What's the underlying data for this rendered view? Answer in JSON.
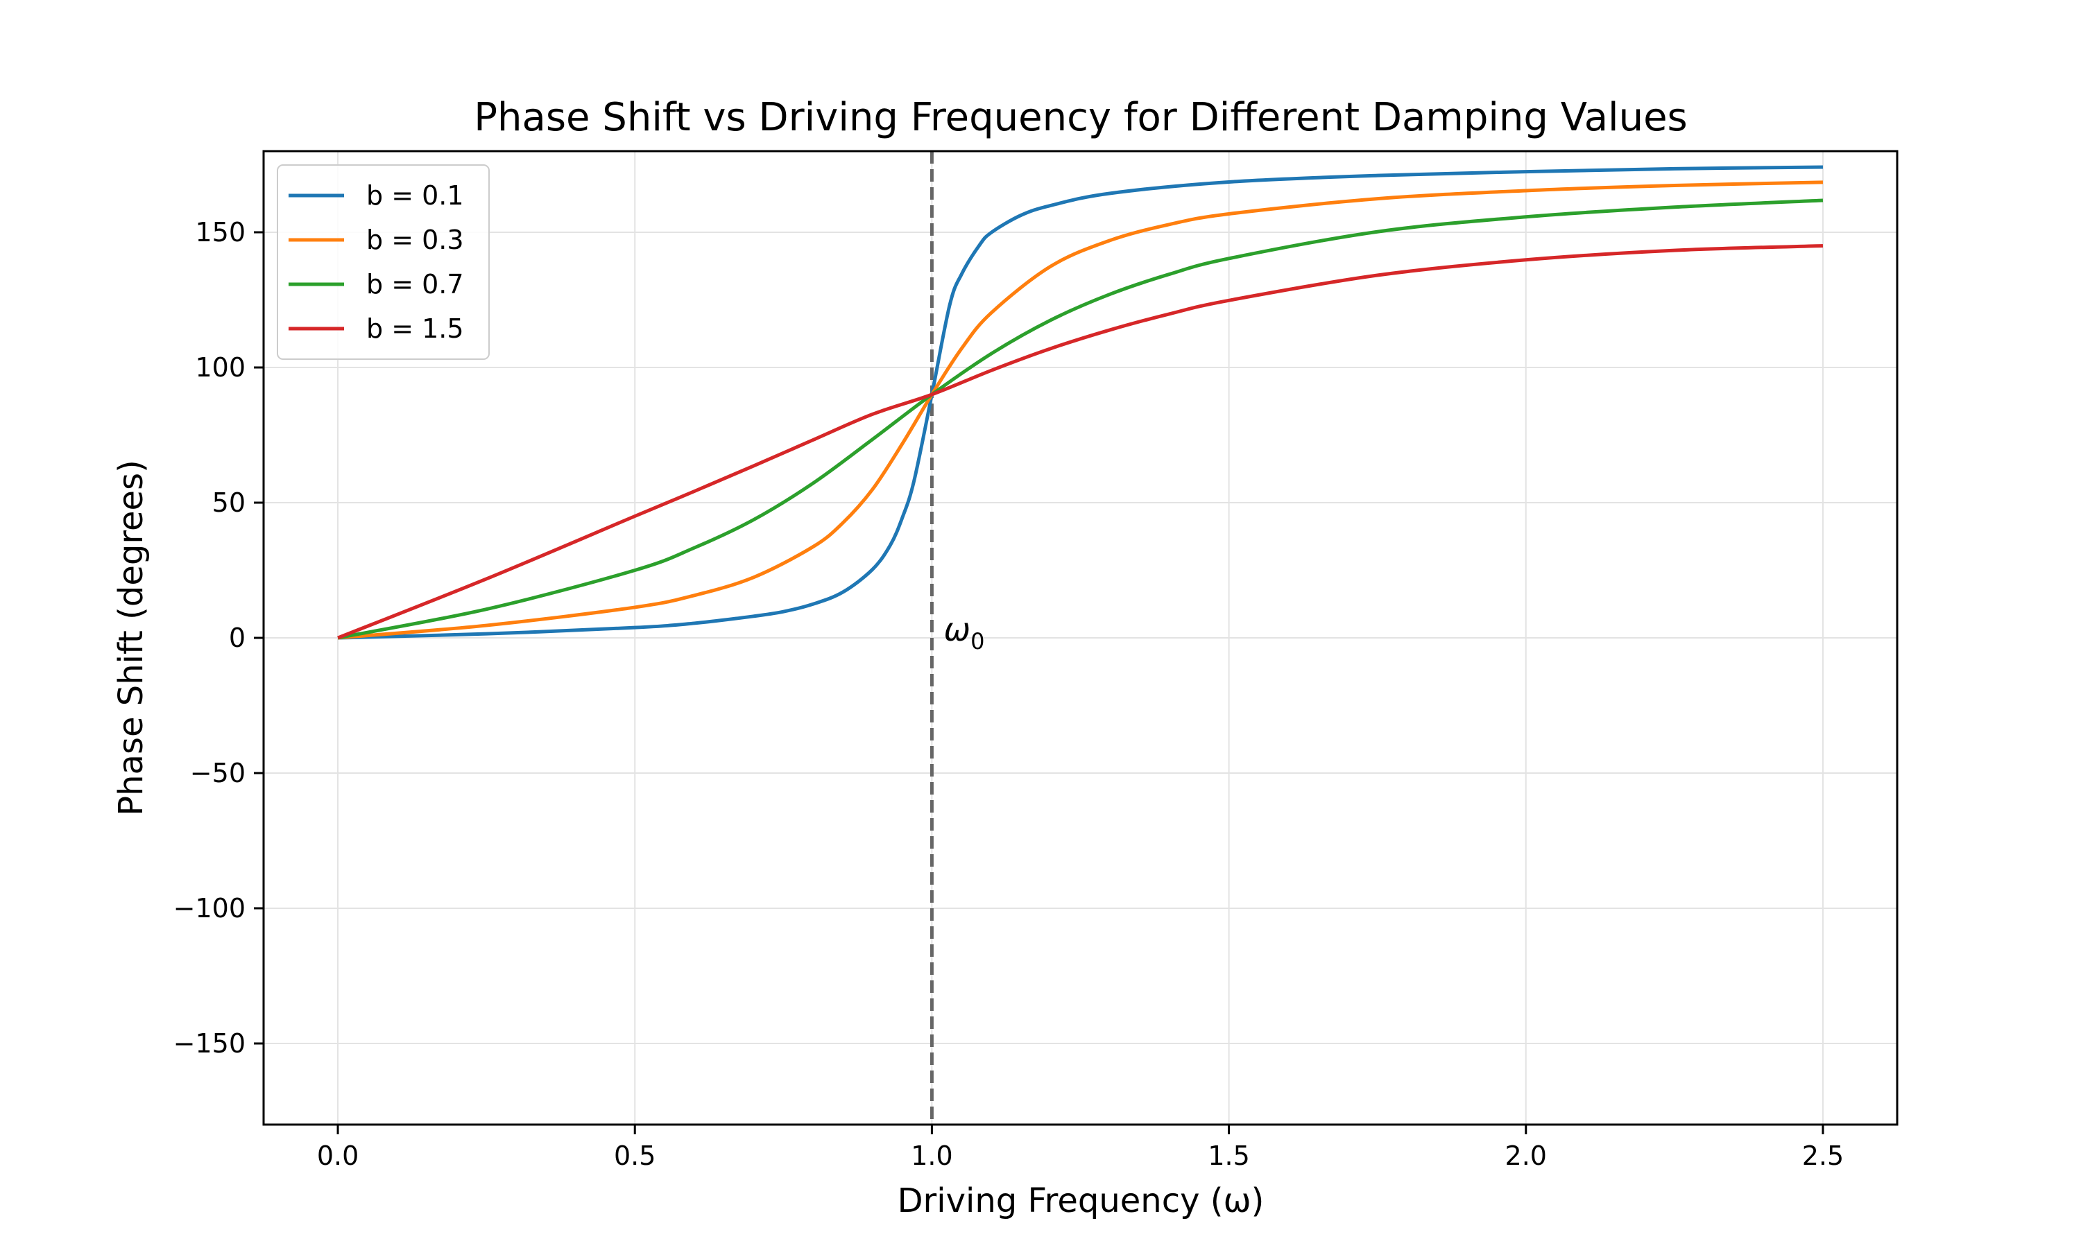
{
  "chart_data": {
    "type": "line",
    "title": "Phase Shift vs Driving Frequency for Different Damping Values",
    "xlabel": "Driving Frequency (ω)",
    "ylabel": "Phase Shift (degrees)",
    "xlim": [
      -0.125,
      2.625
    ],
    "ylim": [
      -180,
      180
    ],
    "xticks": [
      0.0,
      0.5,
      1.0,
      1.5,
      2.0,
      2.5
    ],
    "xtick_labels": [
      "0.0",
      "0.5",
      "1.0",
      "1.5",
      "2.0",
      "2.5"
    ],
    "yticks": [
      -150,
      -100,
      -50,
      0,
      50,
      100,
      150
    ],
    "ytick_labels": [
      "−150",
      "−100",
      "−50",
      "0",
      "50",
      "100",
      "150"
    ],
    "grid": true,
    "legend_position": "upper-left",
    "series": [
      {
        "name": "b = 0.1",
        "color": "#1f77b4",
        "x": [
          0.0,
          0.25,
          0.5,
          0.6,
          0.7,
          0.75,
          0.8,
          0.85,
          0.9,
          0.93,
          0.95,
          0.97,
          1.0,
          1.03,
          1.05,
          1.08,
          1.1,
          1.15,
          1.2,
          1.3,
          1.5,
          1.75,
          2.0,
          2.25,
          2.5
        ],
        "y": [
          0.0,
          1.5,
          3.8,
          5.4,
          8.0,
          9.7,
          12.5,
          16.9,
          25.3,
          34.3,
          44.3,
          58.1,
          90.0,
          123.1,
          134.5,
          145.2,
          149.9,
          156.3,
          159.9,
          164.4,
          168.6,
          171.0,
          172.4,
          173.5,
          174.1
        ]
      },
      {
        "name": "b = 0.3",
        "color": "#ff7f0e",
        "x": [
          0.0,
          0.25,
          0.5,
          0.6,
          0.7,
          0.8,
          0.85,
          0.9,
          0.95,
          1.0,
          1.05,
          1.1,
          1.2,
          1.3,
          1.4,
          1.5,
          1.75,
          2.0,
          2.25,
          2.5
        ],
        "y": [
          0.0,
          4.6,
          11.3,
          15.7,
          22.4,
          33.7,
          42.5,
          54.9,
          71.7,
          90.0,
          107.0,
          120.2,
          137.4,
          147.0,
          152.9,
          156.8,
          162.4,
          165.4,
          167.3,
          168.5
        ]
      },
      {
        "name": "b = 0.7",
        "color": "#2ca02c",
        "x": [
          0.0,
          0.25,
          0.5,
          0.6,
          0.7,
          0.8,
          0.9,
          1.0,
          1.1,
          1.2,
          1.3,
          1.4,
          1.5,
          1.75,
          2.0,
          2.25,
          2.5
        ],
        "y": [
          0.0,
          10.6,
          25.0,
          33.3,
          43.7,
          57.2,
          73.4,
          90.0,
          105.1,
          117.5,
          127.1,
          134.5,
          140.3,
          150.2,
          155.7,
          159.3,
          161.8
        ]
      },
      {
        "name": "b = 1.5",
        "color": "#d62728",
        "x": [
          0.0,
          0.25,
          0.5,
          0.6,
          0.7,
          0.8,
          0.9,
          1.0,
          1.1,
          1.2,
          1.3,
          1.4,
          1.5,
          1.75,
          2.0,
          2.25,
          2.5
        ],
        "y": [
          0.0,
          21.8,
          45.0,
          54.2,
          63.6,
          73.2,
          82.7,
          90.0,
          98.9,
          107.0,
          113.9,
          119.8,
          124.8,
          134.1,
          139.8,
          143.3,
          145.0
        ]
      }
    ],
    "annotations": [
      {
        "type": "vline",
        "x": 1.0,
        "style": "dashed",
        "color": "#666666"
      },
      {
        "type": "text",
        "text": "ω",
        "subscript": "0",
        "x": 1.02,
        "y": 0
      }
    ]
  }
}
